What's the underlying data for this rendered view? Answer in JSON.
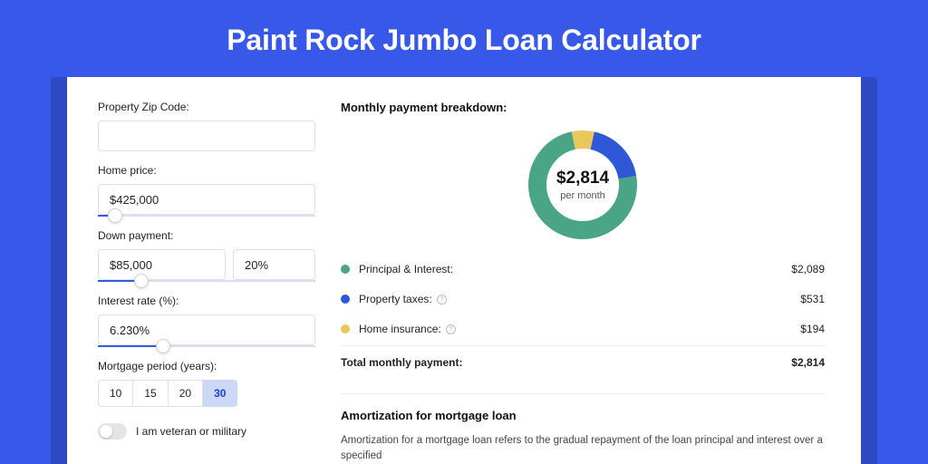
{
  "title": "Paint Rock Jumbo Loan Calculator",
  "colors": {
    "page_bg": "#3858e9",
    "card_shadow": "#2f49c4",
    "card_bg": "#ffffff",
    "slider_fill": "#3858e9",
    "period_active_bg": "#cdd8f7"
  },
  "left": {
    "zip": {
      "label": "Property Zip Code:",
      "value": ""
    },
    "home_price": {
      "label": "Home price:",
      "value": "$425,000",
      "slider_pct": 8
    },
    "down_payment": {
      "label": "Down payment:",
      "value": "$85,000",
      "pct_value": "20%",
      "slider_pct": 20
    },
    "interest": {
      "label": "Interest rate (%):",
      "value": "6.230%",
      "slider_pct": 30
    },
    "period": {
      "label": "Mortgage period (years):",
      "options": [
        "10",
        "15",
        "20",
        "30"
      ],
      "selected": "30"
    },
    "veteran": {
      "label": "I am veteran or military",
      "on": false
    }
  },
  "right": {
    "breakdown_head": "Monthly payment breakdown:",
    "donut": {
      "center_amount": "$2,814",
      "center_sub": "per month",
      "type": "donut",
      "total": 2814,
      "stroke_width": 20,
      "slices": [
        {
          "key": "principal_interest",
          "value": 2089,
          "color": "#4aa586"
        },
        {
          "key": "property_taxes",
          "value": 531,
          "color": "#2f58d6"
        },
        {
          "key": "home_insurance",
          "value": 194,
          "color": "#e9c75a"
        }
      ]
    },
    "legend": [
      {
        "label": "Principal & Interest:",
        "value": "$2,089",
        "color": "#4aa586",
        "info": false
      },
      {
        "label": "Property taxes:",
        "value": "$531",
        "color": "#2f58d6",
        "info": true
      },
      {
        "label": "Home insurance:",
        "value": "$194",
        "color": "#e9c75a",
        "info": true
      }
    ],
    "total": {
      "label": "Total monthly payment:",
      "value": "$2,814"
    },
    "amortization": {
      "head": "Amortization for mortgage loan",
      "text": "Amortization for a mortgage loan refers to the gradual repayment of the loan principal and interest over a specified"
    }
  }
}
